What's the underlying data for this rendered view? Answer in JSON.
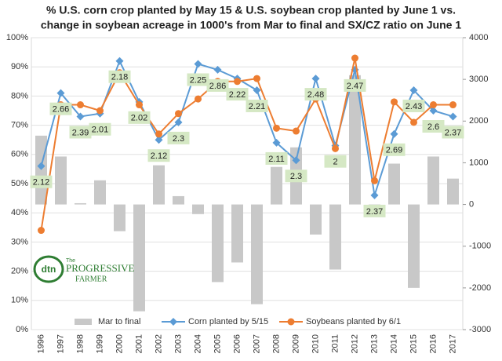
{
  "chart_data": {
    "type": "combo",
    "title": "% U.S. corn crop planted by May 15 & U.S. soybean crop planted by June 1 vs.",
    "subtitle": "change in soybean acreage in 1000's from Mar to final and SX/CZ ratio on June 1",
    "categories": [
      "1996",
      "1997",
      "1998",
      "1999",
      "2000",
      "2001",
      "2002",
      "2003",
      "2004",
      "2005",
      "2006",
      "2007",
      "2008",
      "2009",
      "2010",
      "2011",
      "2012",
      "2013",
      "2014",
      "2015",
      "2016",
      "2017"
    ],
    "series": [
      {
        "name": "Mar to final",
        "type": "bar",
        "axis": "y2",
        "color": "#c8c8c8",
        "values": [
          1650,
          1150,
          30,
          580,
          -640,
          -2560,
          940,
          200,
          -230,
          -1860,
          -1390,
          -2390,
          900,
          1370,
          -720,
          -1560,
          3100,
          -100,
          980,
          -2000,
          1150,
          620
        ]
      },
      {
        "name": "Corn planted by 5/15",
        "type": "line",
        "color": "#5b9bd5",
        "marker": "diamond",
        "values": [
          56,
          81,
          73,
          74,
          92,
          78,
          65,
          71,
          91,
          89,
          86,
          82,
          64,
          58,
          86,
          63,
          89,
          46,
          67,
          82,
          75,
          73
        ]
      },
      {
        "name": "Soybeans planted by 6/1",
        "type": "line",
        "color": "#ed7d31",
        "marker": "circle",
        "values": [
          34,
          77,
          77,
          75,
          88,
          77,
          67,
          74,
          79,
          85,
          85,
          86,
          69,
          68,
          79,
          62,
          93,
          51,
          78,
          71,
          77,
          77
        ]
      }
    ],
    "data_labels": [
      2.12,
      2.66,
      2.39,
      2.01,
      2.18,
      2.02,
      2.12,
      2.3,
      2.25,
      2.86,
      2.22,
      2.21,
      2.11,
      2.3,
      2.48,
      2,
      2.47,
      2.37,
      2.69,
      2.43,
      2.6,
      2.37
    ],
    "data_label_color": "#d5e8c4",
    "ylim": [
      0,
      100
    ],
    "yticks": [
      {
        "value": 0,
        "label": "0%"
      },
      {
        "value": 10,
        "label": "10%"
      },
      {
        "value": 20,
        "label": "20%"
      },
      {
        "value": 30,
        "label": "30%"
      },
      {
        "value": 40,
        "label": "40%"
      },
      {
        "value": 50,
        "label": "50%"
      },
      {
        "value": 60,
        "label": "60%"
      },
      {
        "value": 70,
        "label": "70%"
      },
      {
        "value": 80,
        "label": "80%"
      },
      {
        "value": 90,
        "label": "90%"
      },
      {
        "value": 100,
        "label": "100%"
      }
    ],
    "y2lim": [
      -3000,
      4000
    ],
    "y2ticks": [
      -3000,
      -2000,
      -1000,
      0,
      1000,
      2000,
      3000,
      4000
    ],
    "legend": "bottom",
    "logo": {
      "brand": "dtn",
      "line1": "The",
      "line2": "PROGRESSIVE",
      "line3": "FARMER"
    }
  }
}
